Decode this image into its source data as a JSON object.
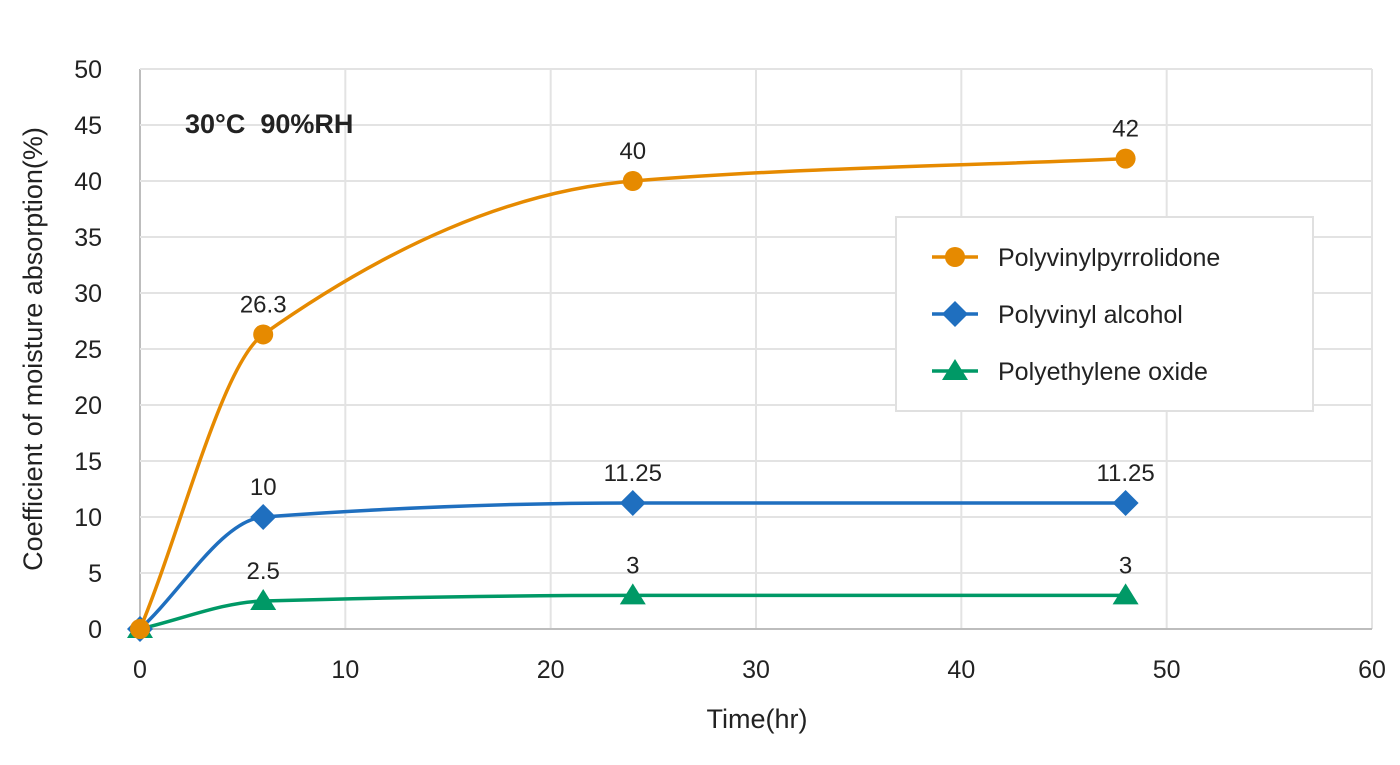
{
  "chart_data": {
    "type": "line",
    "title": "",
    "annotation": "30°C  90%RH",
    "xlabel": "Time(hr)",
    "ylabel": "Coefficient of moisture absorption(%)",
    "xlim": [
      0,
      60
    ],
    "ylim": [
      0,
      50
    ],
    "xticks": [
      0,
      10,
      20,
      30,
      40,
      50,
      60
    ],
    "yticks": [
      0,
      5,
      10,
      15,
      20,
      25,
      30,
      35,
      40,
      45,
      50
    ],
    "grid": true,
    "smooth": true,
    "legend_position": "right",
    "series": [
      {
        "name": "Polyvinylpyrrolidone",
        "color": "#E68A00",
        "marker": "circle",
        "x": [
          0,
          6,
          24,
          48
        ],
        "y": [
          0,
          26.3,
          40,
          42
        ],
        "labels": [
          "",
          "26.3",
          "40",
          "42"
        ]
      },
      {
        "name": "Polyvinyl alcohol",
        "color": "#1F6FBF",
        "marker": "diamond",
        "x": [
          0,
          6,
          24,
          48
        ],
        "y": [
          0,
          10,
          11.25,
          11.25
        ],
        "labels": [
          "",
          "10",
          "11.25",
          "11.25"
        ]
      },
      {
        "name": "Polyethylene oxide",
        "color": "#009966",
        "marker": "triangle",
        "x": [
          0,
          6,
          24,
          48
        ],
        "y": [
          0,
          2.5,
          3,
          3
        ],
        "labels": [
          "",
          "2.5",
          "3",
          "3"
        ]
      }
    ]
  }
}
